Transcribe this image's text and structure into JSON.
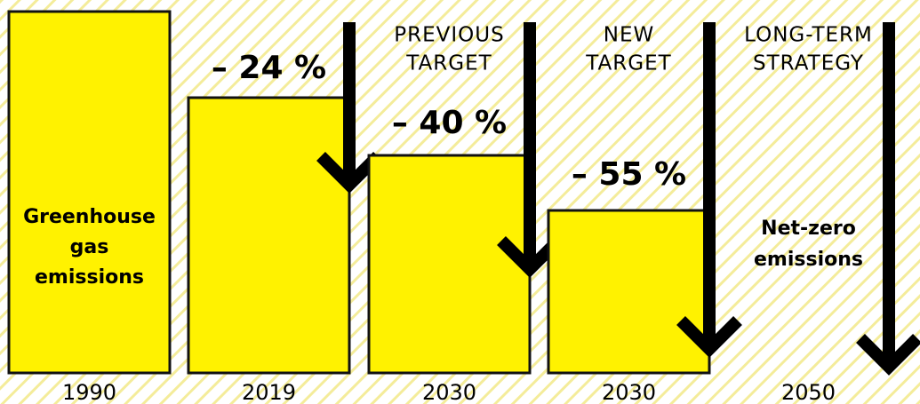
{
  "columns": [
    {
      "year": "1990",
      "label": [
        "Greenhouse",
        "gas",
        "emissions"
      ]
    },
    {
      "year": "2019",
      "change": "– 24 %"
    },
    {
      "year": "2030",
      "heading": [
        "PREVIOUS",
        "TARGET"
      ],
      "change": "– 40 %"
    },
    {
      "year": "2030",
      "heading": [
        "NEW",
        "TARGET"
      ],
      "change": "– 55 %"
    },
    {
      "year": "2050",
      "heading": [
        "LONG-TERM",
        "STRATEGY"
      ],
      "label": [
        "Net-zero",
        "emissions"
      ]
    }
  ]
}
